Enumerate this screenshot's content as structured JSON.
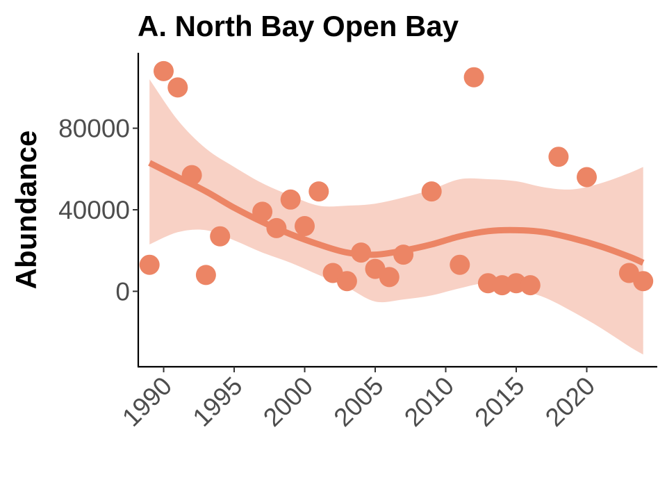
{
  "chart_data": {
    "type": "scatter",
    "title": "A. North Bay Open Bay",
    "xlabel": "",
    "ylabel": "Abundance",
    "xlim": [
      1988.2,
      2025.0
    ],
    "ylim": [
      -37000,
      117000
    ],
    "xticks": [
      1990,
      1995,
      2000,
      2005,
      2010,
      2015,
      2020
    ],
    "yticks": [
      0,
      40000,
      80000
    ],
    "xtick_labels": [
      "1990",
      "1995",
      "2000",
      "2005",
      "2010",
      "2015",
      "2020"
    ],
    "ytick_labels": [
      "0",
      "40000",
      "80000"
    ],
    "grid": false,
    "legend": "none",
    "colors": {
      "points": "#ec8565",
      "trend": "#ec8565",
      "band": "#f7c9bb"
    },
    "points": [
      {
        "x": 1989,
        "y": 13000
      },
      {
        "x": 1990,
        "y": 108000
      },
      {
        "x": 1991,
        "y": 100000
      },
      {
        "x": 1992,
        "y": 57000
      },
      {
        "x": 1993,
        "y": 8000
      },
      {
        "x": 1994,
        "y": 27000
      },
      {
        "x": 1997,
        "y": 39000
      },
      {
        "x": 1998,
        "y": 31000
      },
      {
        "x": 1999,
        "y": 45000
      },
      {
        "x": 2000,
        "y": 32000
      },
      {
        "x": 2001,
        "y": 49000
      },
      {
        "x": 2002,
        "y": 9000
      },
      {
        "x": 2003,
        "y": 5000
      },
      {
        "x": 2004,
        "y": 19000
      },
      {
        "x": 2005,
        "y": 11000
      },
      {
        "x": 2006,
        "y": 7000
      },
      {
        "x": 2007,
        "y": 18000
      },
      {
        "x": 2009,
        "y": 49000
      },
      {
        "x": 2011,
        "y": 13000
      },
      {
        "x": 2012,
        "y": 105000
      },
      {
        "x": 2013,
        "y": 4000
      },
      {
        "x": 2014,
        "y": 3000
      },
      {
        "x": 2015,
        "y": 4000
      },
      {
        "x": 2016,
        "y": 3000
      },
      {
        "x": 2018,
        "y": 66000
      },
      {
        "x": 2020,
        "y": 56000
      },
      {
        "x": 2023,
        "y": 9000
      },
      {
        "x": 2024,
        "y": 5000
      }
    ],
    "trend": {
      "x": [
        1989,
        1991,
        1993,
        1995,
        1997,
        1999,
        2001,
        2003,
        2005,
        2007,
        2009,
        2011,
        2013,
        2015,
        2017,
        2019,
        2021,
        2023,
        2024
      ],
      "y": [
        63000,
        56000,
        49000,
        41000,
        34000,
        28000,
        23000,
        19000,
        18000,
        20000,
        23000,
        27000,
        29500,
        30000,
        29000,
        26000,
        22000,
        17000,
        14000
      ],
      "lower": [
        23000,
        29000,
        30000,
        25000,
        19000,
        14000,
        8000,
        2000,
        -5000,
        -4000,
        -2000,
        1500,
        4000,
        1000,
        -3000,
        -10000,
        -18000,
        -27000,
        -31000
      ],
      "upper": [
        104000,
        84000,
        70000,
        61000,
        53000,
        47000,
        42000,
        42000,
        43000,
        46000,
        50000,
        55000,
        55000,
        54000,
        51000,
        50000,
        53000,
        58000,
        61000
      ]
    }
  }
}
